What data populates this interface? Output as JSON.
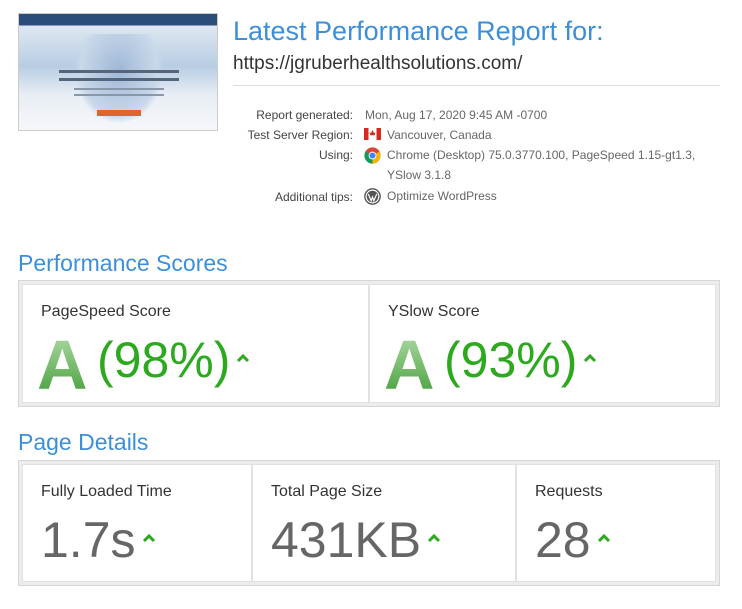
{
  "header": {
    "title": "Latest Performance Report for:",
    "url": "https://jgruberhealthsolutions.com/"
  },
  "report_info": [
    {
      "label": "Report generated:",
      "value": "Mon, Aug 17, 2020 9:45 AM -0700"
    },
    {
      "label": "Test Server Region:",
      "value": "Vancouver, Canada"
    },
    {
      "label": "Using:",
      "value": "Chrome (Desktop) 75.0.3770.100, PageSpeed 1.15-gt1.3, YSlow 3.1.8"
    },
    {
      "label": "Additional tips:",
      "value": "Optimize WordPress"
    }
  ],
  "performance_scores": {
    "title": "Performance Scores",
    "items": [
      {
        "label": "PageSpeed Score",
        "grade": "A",
        "score": "(98%)"
      },
      {
        "label": "YSlow Score",
        "grade": "A",
        "score": "(93%)"
      }
    ]
  },
  "page_details": {
    "title": "Page Details",
    "items": [
      {
        "label": "Fully Loaded Time",
        "value": "1.7s"
      },
      {
        "label": "Total Page Size",
        "value": "431KB"
      },
      {
        "label": "Requests",
        "value": "28"
      }
    ]
  }
}
